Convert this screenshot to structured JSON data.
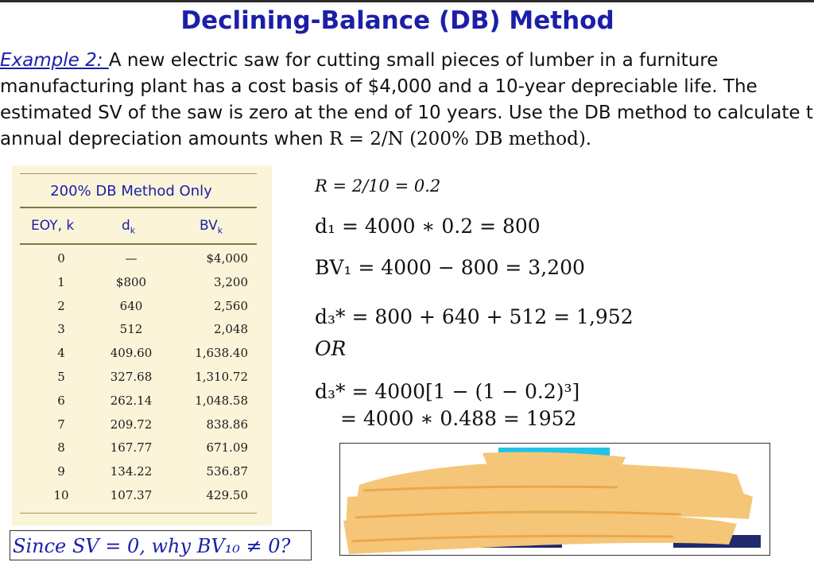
{
  "title": "Declining-Balance (DB) Method",
  "paragraph": {
    "example_label": "Example  2: ",
    "line1": "A new electric saw for cutting small pieces of lumber in a furniture",
    "line2": "manufacturing plant has a cost basis of $4,000 and a 10-year depreciable life. The",
    "line3": "estimated SV of the saw is zero at the end of 10 years. Use the DB method to calculate the",
    "line4_prefix": "annual depreciation amounts when ",
    "line4_formula": "R = 2/N (200% DB method)."
  },
  "table": {
    "title": "200% DB Method Only",
    "headers": [
      "EOY, k",
      "dk",
      "BVk"
    ],
    "rows": [
      [
        "0",
        "—",
        "$4,000"
      ],
      [
        "1",
        "$800",
        "3,200"
      ],
      [
        "2",
        "640",
        "2,560"
      ],
      [
        "3",
        "512",
        "2,048"
      ],
      [
        "4",
        "409.60",
        "1,638.40"
      ],
      [
        "5",
        "327.68",
        "1,310.72"
      ],
      [
        "6",
        "262.14",
        "1,048.58"
      ],
      [
        "7",
        "209.72",
        "838.86"
      ],
      [
        "8",
        "167.77",
        "671.09"
      ],
      [
        "9",
        "134.22",
        "536.87"
      ],
      [
        "10",
        "107.37",
        "429.50"
      ]
    ]
  },
  "math": {
    "r_eq": "R = 2/10 = 0.2",
    "d1": "d₁ = 4000 ∗ 0.2 = 800",
    "bv1": "BV₁ = 4000 − 800 = 3,200",
    "d3_sum": "d₃* = 800 + 640 + 512 = 1,952",
    "or": "OR",
    "d3_formula": "d₃* = 4000[1 − (1 − 0.2)³]",
    "d3_result": "= 4000 ∗ 0.488 = 1952"
  },
  "question": "Since SV = 0, why BV₁₀ ≠ 0?",
  "colors": {
    "title": "#1b1fa8",
    "table_bg": "#fbf4d9",
    "scribble": "#f5c678"
  }
}
